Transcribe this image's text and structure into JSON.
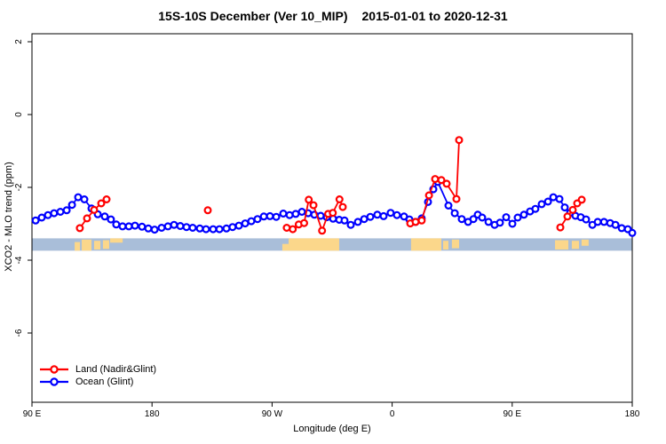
{
  "title": {
    "main": "15S-10S December (Ver 10_MIP)",
    "dates": "2015-01-01 to 2020-12-31"
  },
  "chart_data": {
    "type": "line",
    "title": "15S-10S December (Ver 10_MIP)  2015-01-01 to 2020-12-31",
    "xlabel": "Longitude (deg E)",
    "ylabel": "XCO2 - MLO trend (ppm)",
    "x_axis": {
      "note": "longitude axis wraps: spans 450 deg starting at 90E",
      "range_axis_units": [
        0,
        450
      ],
      "ticks_axis_units": [
        0,
        90,
        180,
        270,
        360,
        450
      ],
      "tick_labels": [
        "90 E",
        "180",
        "90 W",
        "0",
        "90 E",
        "180"
      ]
    },
    "y_axis": {
      "range": [
        -7.9,
        2.2
      ],
      "ticks": [
        2,
        0,
        -2,
        -4,
        -6
      ],
      "tick_labels": [
        "2",
        "0",
        "-2",
        "-4",
        "-6"
      ]
    },
    "grid": false,
    "legend_position": "bottom-left-inside",
    "map_strip": {
      "description": "land/ocean longitude indicator band",
      "ocean_color": "#a9bed9",
      "land_color": "#fbd78b",
      "y_top": -3.4,
      "y_bottom": -3.74,
      "land_patches": [
        {
          "u0": 32.0,
          "u1": 36.0,
          "t": 0.3,
          "b": 1.0
        },
        {
          "u0": 37.3,
          "u1": 44.6,
          "t": 0.1,
          "b": 1.0
        },
        {
          "u0": 46.6,
          "u1": 51.3,
          "t": 0.2,
          "b": 0.9
        },
        {
          "u0": 53.2,
          "u1": 57.9,
          "t": 0.15,
          "b": 0.85
        },
        {
          "u0": 58.6,
          "u1": 68.0,
          "t": 0.0,
          "b": 0.35
        },
        {
          "u0": 187.7,
          "u1": 192.4,
          "t": 0.45,
          "b": 1.0
        },
        {
          "u0": 192.4,
          "u1": 230.3,
          "t": 0.0,
          "b": 1.0
        },
        {
          "u0": 284.2,
          "u1": 306.9,
          "t": 0.0,
          "b": 1.0
        },
        {
          "u0": 308.2,
          "u1": 312.2,
          "t": 0.2,
          "b": 0.9
        },
        {
          "u0": 314.8,
          "u1": 320.2,
          "t": 0.1,
          "b": 0.8
        },
        {
          "u0": 392.1,
          "u1": 402.1,
          "t": 0.15,
          "b": 0.9
        },
        {
          "u0": 404.7,
          "u1": 410.1,
          "t": 0.2,
          "b": 0.85
        },
        {
          "u0": 412.0,
          "u1": 417.3,
          "t": 0.1,
          "b": 0.6
        }
      ]
    },
    "series": [
      {
        "name": "Land (Nadir&Glint)",
        "color": "#ff0000",
        "marker": "open-circle",
        "segments": [
          [
            [
              35.9,
              -3.12
            ],
            [
              41.3,
              -2.85
            ],
            [
              46.6,
              -2.62
            ],
            [
              51.9,
              -2.44
            ],
            [
              55.9,
              -2.33
            ]
          ],
          [
            [
              131.8,
              -2.63
            ]
          ],
          [
            [
              191.0,
              -3.11
            ],
            [
              195.5,
              -3.15
            ],
            [
              200.0,
              -3.02
            ],
            [
              204.0,
              -2.98
            ],
            [
              207.5,
              -2.34
            ],
            [
              211.0,
              -2.49
            ],
            [
              217.5,
              -3.19
            ],
            [
              222.0,
              -2.73
            ],
            [
              225.5,
              -2.7
            ],
            [
              230.5,
              -2.33
            ],
            [
              233.0,
              -2.54
            ]
          ],
          [
            [
              283.6,
              -2.99
            ],
            [
              287.6,
              -2.95
            ],
            [
              292.2,
              -2.91
            ],
            [
              297.6,
              -2.22
            ],
            [
              302.2,
              -1.77
            ],
            [
              306.9,
              -1.8
            ],
            [
              310.9,
              -1.9
            ],
            [
              318.2,
              -2.32
            ],
            [
              320.2,
              -0.7
            ]
          ],
          [
            [
              396.1,
              -3.1
            ],
            [
              401.4,
              -2.8
            ],
            [
              405.4,
              -2.62
            ],
            [
              408.7,
              -2.44
            ],
            [
              412.1,
              -2.34
            ]
          ]
        ]
      },
      {
        "name": "Ocean (Glint)",
        "color": "#0000ff",
        "marker": "open-circle",
        "segments": [
          [
            [
              2.7,
              -2.91
            ],
            [
              7.3,
              -2.83
            ],
            [
              12.0,
              -2.76
            ],
            [
              16.6,
              -2.71
            ],
            [
              21.3,
              -2.67
            ],
            [
              26.0,
              -2.63
            ],
            [
              30.0,
              -2.48
            ],
            [
              34.6,
              -2.27
            ],
            [
              39.3,
              -2.33
            ],
            [
              44.6,
              -2.58
            ],
            [
              49.3,
              -2.74
            ],
            [
              54.6,
              -2.8
            ],
            [
              59.2,
              -2.88
            ],
            [
              63.2,
              -3.02
            ],
            [
              67.9,
              -3.07
            ],
            [
              72.6,
              -3.07
            ],
            [
              77.2,
              -3.05
            ],
            [
              82.5,
              -3.08
            ],
            [
              87.2,
              -3.13
            ],
            [
              91.9,
              -3.16
            ],
            [
              97.2,
              -3.11
            ],
            [
              101.9,
              -3.07
            ],
            [
              106.5,
              -3.03
            ],
            [
              111.2,
              -3.06
            ],
            [
              115.8,
              -3.09
            ],
            [
              120.5,
              -3.11
            ],
            [
              125.8,
              -3.13
            ],
            [
              130.5,
              -3.15
            ],
            [
              135.8,
              -3.15
            ],
            [
              140.5,
              -3.15
            ],
            [
              145.8,
              -3.13
            ],
            [
              150.4,
              -3.09
            ],
            [
              155.1,
              -3.05
            ],
            [
              159.8,
              -2.99
            ],
            [
              164.4,
              -2.93
            ],
            [
              169.1,
              -2.87
            ],
            [
              173.8,
              -2.8
            ],
            [
              178.4,
              -2.79
            ],
            [
              183.1,
              -2.81
            ],
            [
              188.4,
              -2.72
            ],
            [
              193.1,
              -2.76
            ],
            [
              197.7,
              -2.73
            ],
            [
              202.4,
              -2.67
            ],
            [
              207.0,
              -2.71
            ],
            [
              211.7,
              -2.75
            ],
            [
              216.4,
              -2.78
            ],
            [
              221.0,
              -2.82
            ],
            [
              225.7,
              -2.86
            ],
            [
              230.3,
              -2.89
            ],
            [
              234.3,
              -2.91
            ],
            [
              239.0,
              -3.03
            ],
            [
              244.3,
              -2.95
            ],
            [
              249.0,
              -2.87
            ],
            [
              253.6,
              -2.81
            ],
            [
              258.9,
              -2.75
            ],
            [
              263.6,
              -2.79
            ],
            [
              268.9,
              -2.7
            ],
            [
              273.6,
              -2.76
            ],
            [
              278.9,
              -2.8
            ],
            [
              282.9,
              -2.88
            ],
            [
              287.6,
              -2.95
            ],
            [
              292.2,
              -2.85
            ],
            [
              296.9,
              -2.4
            ],
            [
              300.9,
              -2.05
            ],
            [
              304.2,
              -1.85
            ],
            [
              312.2,
              -2.5
            ],
            [
              316.9,
              -2.71
            ],
            [
              322.2,
              -2.87
            ],
            [
              326.9,
              -2.95
            ],
            [
              330.9,
              -2.87
            ],
            [
              334.2,
              -2.75
            ],
            [
              337.5,
              -2.83
            ],
            [
              342.2,
              -2.95
            ],
            [
              346.8,
              -3.03
            ],
            [
              350.8,
              -2.97
            ],
            [
              355.5,
              -2.82
            ],
            [
              360.1,
              -3.0
            ],
            [
              364.1,
              -2.83
            ],
            [
              368.8,
              -2.75
            ],
            [
              373.4,
              -2.66
            ],
            [
              377.4,
              -2.59
            ],
            [
              382.1,
              -2.46
            ],
            [
              386.8,
              -2.39
            ],
            [
              390.8,
              -2.27
            ],
            [
              395.4,
              -2.32
            ],
            [
              399.4,
              -2.55
            ],
            [
              403.4,
              -2.7
            ],
            [
              407.4,
              -2.78
            ],
            [
              411.4,
              -2.82
            ],
            [
              415.4,
              -2.88
            ],
            [
              420.1,
              -3.03
            ],
            [
              424.1,
              -2.95
            ],
            [
              428.8,
              -2.95
            ],
            [
              433.4,
              -2.98
            ],
            [
              437.4,
              -3.03
            ],
            [
              442.1,
              -3.12
            ],
            [
              446.7,
              -3.15
            ],
            [
              450.0,
              -3.25
            ]
          ]
        ]
      }
    ]
  },
  "legend": {
    "items": [
      {
        "label": "Land (Nadir&Glint)",
        "color": "#ff0000"
      },
      {
        "label": "Ocean (Glint)",
        "color": "#0000ff"
      }
    ]
  }
}
